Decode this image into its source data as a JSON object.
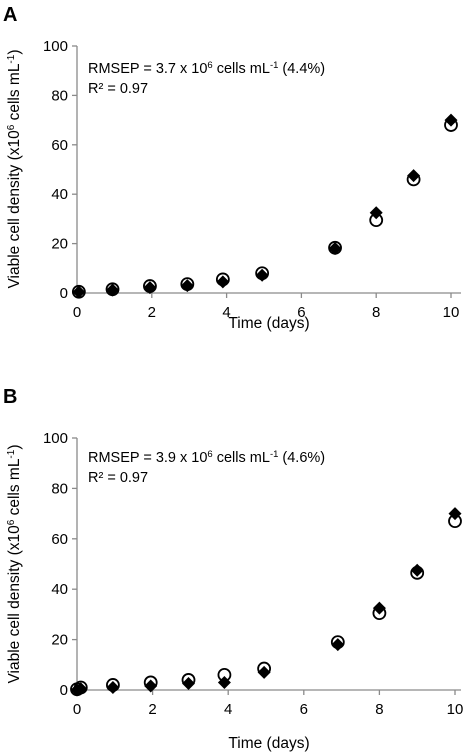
{
  "chart_data": [
    {
      "type": "scatter",
      "panel_label": "A",
      "xlabel": "Time (days)",
      "ylabel": {
        "main": "Viable cell density  (x10",
        "sup1": "6",
        "mid": " cells mL",
        "sup2": "-1",
        "end": ")"
      },
      "xlim": [
        0,
        10
      ],
      "ylim": [
        0,
        100
      ],
      "xticks": [
        0,
        2,
        4,
        6,
        8,
        10
      ],
      "yticks": [
        0,
        20,
        40,
        60,
        80,
        100
      ],
      "grid": false,
      "legend": "none",
      "annotations": {
        "rmsep": {
          "pre": "RMSEP = 3.7 x 10",
          "sup1": "6",
          "mid": " cells mL",
          "sup2": "-1",
          "post": " (4.4%)"
        },
        "r2": "R² = 0.97"
      },
      "series": [
        {
          "marker": "diamond-filled",
          "points": [
            [
              0.05,
              0.4
            ],
            [
              0.95,
              1.2
            ],
            [
              1.95,
              2.2
            ],
            [
              2.95,
              3.0
            ],
            [
              3.9,
              4.5
            ],
            [
              4.95,
              7.2
            ],
            [
              6.9,
              18.0
            ],
            [
              8.0,
              32.5
            ],
            [
              9.0,
              47.5
            ],
            [
              10.0,
              70.0
            ]
          ]
        },
        {
          "marker": "circle-open",
          "points": [
            [
              0.05,
              0.5
            ],
            [
              0.95,
              1.5
            ],
            [
              1.95,
              2.8
            ],
            [
              2.95,
              3.6
            ],
            [
              3.9,
              5.5
            ],
            [
              4.95,
              8.0
            ],
            [
              6.9,
              18.3
            ],
            [
              8.0,
              29.5
            ],
            [
              9.0,
              46.0
            ],
            [
              10.0,
              68.0
            ]
          ]
        }
      ]
    },
    {
      "type": "scatter",
      "panel_label": "B",
      "xlabel": "Time (days)",
      "ylabel": {
        "main": "Viable cell density  (x10",
        "sup1": "6",
        "mid": " cells mL",
        "sup2": "-1",
        "end": ")"
      },
      "xlim": [
        0,
        10
      ],
      "ylim": [
        0,
        100
      ],
      "xticks": [
        0,
        2,
        4,
        6,
        8,
        10
      ],
      "yticks": [
        0,
        20,
        40,
        60,
        80,
        100
      ],
      "grid": false,
      "legend": "none",
      "annotations": {
        "rmsep": {
          "pre": "RMSEP = 3.9 x 10",
          "sup1": "6",
          "mid": " cells mL",
          "sup2": "-1",
          "post": " (4.6%)"
        },
        "r2": "R² = 0.97"
      },
      "series": [
        {
          "marker": "diamond-filled",
          "points": [
            [
              0.0,
              0.0
            ],
            [
              0.1,
              0.5
            ],
            [
              0.95,
              1.0
            ],
            [
              1.95,
              1.6
            ],
            [
              2.95,
              2.6
            ],
            [
              3.9,
              3.0
            ],
            [
              4.95,
              7.0
            ],
            [
              6.9,
              18.0
            ],
            [
              8.0,
              32.5
            ],
            [
              9.0,
              47.5
            ],
            [
              10.0,
              70.0
            ]
          ]
        },
        {
          "marker": "circle-open",
          "points": [
            [
              0.0,
              0.3
            ],
            [
              0.1,
              1.0
            ],
            [
              0.95,
              2.0
            ],
            [
              1.95,
              3.0
            ],
            [
              2.95,
              4.0
            ],
            [
              3.9,
              6.0
            ],
            [
              4.95,
              8.5
            ],
            [
              6.9,
              19.0
            ],
            [
              8.0,
              30.5
            ],
            [
              9.0,
              46.5
            ],
            [
              10.0,
              67.0
            ]
          ]
        }
      ]
    }
  ]
}
